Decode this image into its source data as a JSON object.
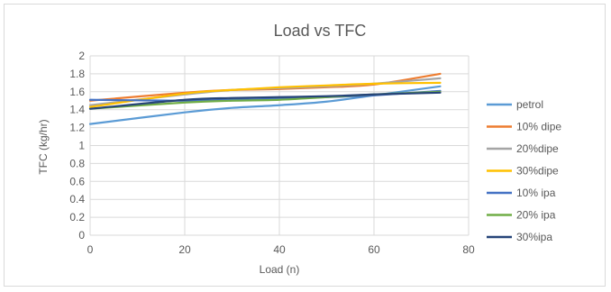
{
  "chart_data": {
    "type": "line",
    "title": "Load vs TFC",
    "xlabel": "Load (n)",
    "ylabel": "TFC (kg/hr)",
    "xlim": [
      0,
      80
    ],
    "ylim": [
      0,
      2
    ],
    "x_ticks": [
      "0",
      "20",
      "40",
      "60",
      "80"
    ],
    "y_ticks": [
      "0",
      "0.2",
      "0.4",
      "0.6",
      "0.8",
      "1",
      "1.2",
      "1.4",
      "1.6",
      "1.8",
      "2"
    ],
    "grid": "on",
    "legend_position": "right",
    "series": [
      {
        "name": "petrol",
        "color": "#5b9bd5",
        "x": [
          0,
          20,
          30,
          40,
          50,
          60,
          74
        ],
        "y": [
          1.24,
          1.37,
          1.42,
          1.45,
          1.49,
          1.56,
          1.66
        ]
      },
      {
        "name": "10% dipe",
        "color": "#ed7d31",
        "x": [
          0,
          20,
          30,
          40,
          50,
          60,
          74
        ],
        "y": [
          1.5,
          1.59,
          1.62,
          1.63,
          1.65,
          1.68,
          1.8
        ]
      },
      {
        "name": "20%dipe",
        "color": "#a5a5a5",
        "x": [
          0,
          20,
          30,
          40,
          50,
          60,
          74
        ],
        "y": [
          1.45,
          1.57,
          1.62,
          1.64,
          1.66,
          1.69,
          1.75
        ]
      },
      {
        "name": "30%dipe",
        "color": "#ffc000",
        "x": [
          0,
          20,
          30,
          40,
          50,
          60,
          74
        ],
        "y": [
          1.43,
          1.58,
          1.62,
          1.65,
          1.67,
          1.69,
          1.7
        ]
      },
      {
        "name": "10% ipa",
        "color": "#4472c4",
        "x": [
          0,
          20,
          30,
          40,
          50,
          60,
          74
        ],
        "y": [
          1.51,
          1.5,
          1.51,
          1.52,
          1.54,
          1.56,
          1.61
        ]
      },
      {
        "name": "20% ipa",
        "color": "#70ad47",
        "x": [
          0,
          20,
          30,
          40,
          50,
          60,
          74
        ],
        "y": [
          1.41,
          1.48,
          1.5,
          1.51,
          1.54,
          1.57,
          1.6
        ]
      },
      {
        "name": "30%ipa",
        "color": "#264478",
        "x": [
          0,
          20,
          30,
          40,
          50,
          60,
          74
        ],
        "y": [
          1.41,
          1.51,
          1.53,
          1.54,
          1.55,
          1.57,
          1.59
        ]
      }
    ]
  }
}
